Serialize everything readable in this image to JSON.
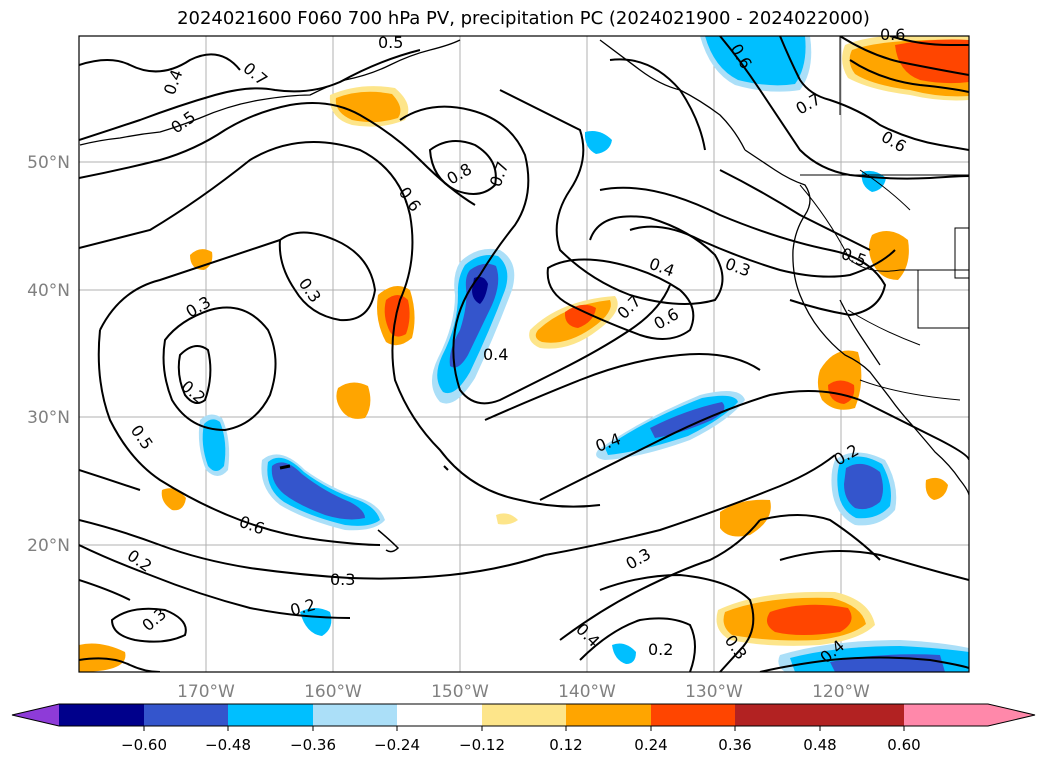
{
  "title": "2024021600 F060 700 hPa PV, precipitation PC (2024021900 - 2024022000)",
  "lat_ticks": [
    "50°N",
    "40°N",
    "30°N",
    "20°N"
  ],
  "lon_ticks": [
    "170°W",
    "160°W",
    "150°W",
    "140°W",
    "130°W",
    "120°W"
  ],
  "contour_labels": [
    "0.4",
    "0.5",
    "0.7",
    "0.5",
    "0.6",
    "0.8",
    "0.7",
    "0.6",
    "0.3",
    "0.3",
    "0.2",
    "0.4",
    "0.7",
    "0.6",
    "0.4",
    "0.3",
    "0.5",
    "0.6",
    "0.7",
    "0.5",
    "0.6",
    "0.4",
    "0.2",
    "0.6",
    "0.2",
    "0.3",
    "0.3",
    "0.2",
    "0.3",
    "0.4",
    "0.2",
    "0.3",
    "0.4"
  ],
  "colorbar": {
    "ticks": [
      "−0.60",
      "−0.48",
      "−0.36",
      "−0.24",
      "−0.12",
      "0.12",
      "0.24",
      "0.36",
      "0.48",
      "0.60"
    ],
    "colors": [
      "#8e3bd8",
      "#00008b",
      "#3455cc",
      "#00bfff",
      "#abdff8",
      "#ffffff",
      "#fde58a",
      "#ffa500",
      "#ff4500",
      "#b22222",
      "#ff88aa"
    ]
  },
  "colors": {
    "shade_darkblue": "#00008b",
    "shade_blue": "#3455cc",
    "shade_cyan": "#00bfff",
    "shade_lightblue": "#abdff8",
    "shade_yellow": "#fde58a",
    "shade_orange": "#ffa500",
    "shade_red": "#ff4500"
  }
}
